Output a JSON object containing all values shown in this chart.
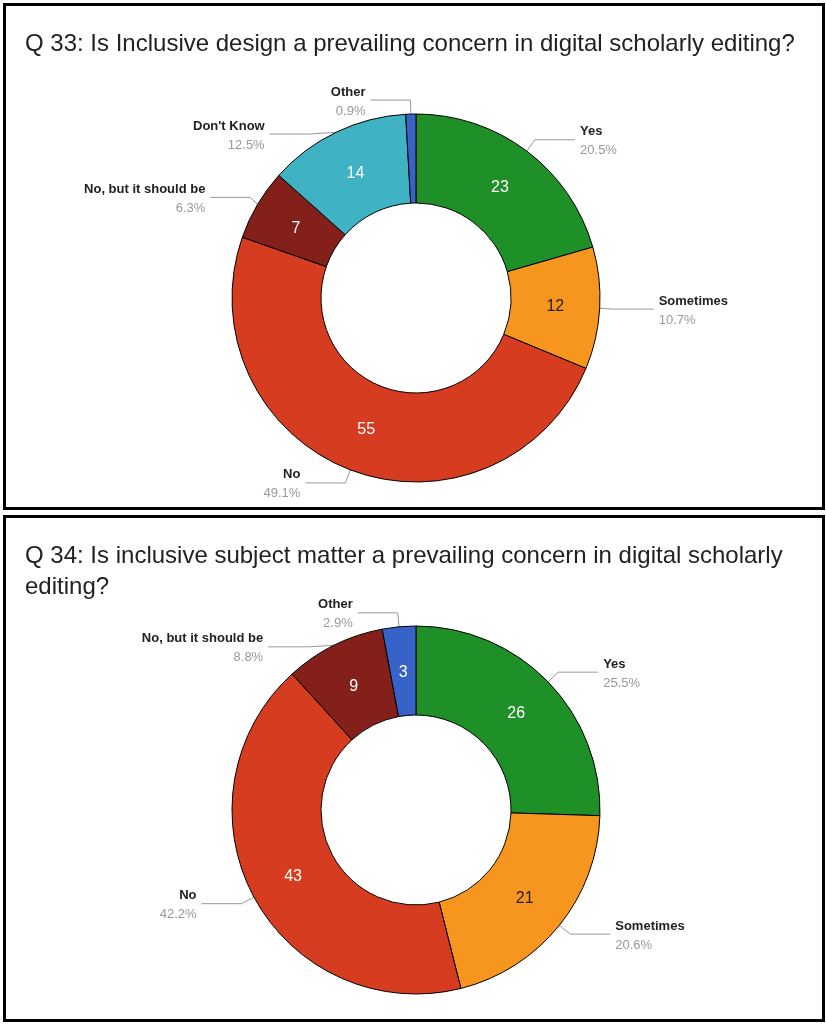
{
  "chart_data": [
    {
      "type": "donut",
      "title": "Q 33: Is Inclusive design a prevailing concern in digital scholarly editing?",
      "categories": [
        "Yes",
        "Sometimes",
        "No",
        "No, but it should be",
        "Don't Know",
        "Other"
      ],
      "values": [
        23,
        12,
        55,
        7,
        14,
        1
      ],
      "colors": [
        "#1f8f27",
        "#f7961e",
        "#d63c1f",
        "#84201a",
        "#3fb3c3",
        "#3763c9"
      ],
      "value_labels": [
        "23",
        "12",
        "55",
        "7",
        "14",
        null
      ],
      "annotations": [
        "20.5%",
        "10.7%",
        "49.1%",
        "6.3%",
        "12.5%",
        "0.9%"
      ],
      "legend": false
    },
    {
      "type": "donut",
      "title": "Q 34: Is inclusive subject matter a prevailing concern in digital scholarly editing?",
      "categories": [
        "Yes",
        "Sometimes",
        "No",
        "No, but it should be",
        "Other"
      ],
      "values": [
        26,
        21,
        43,
        9,
        3
      ],
      "colors": [
        "#1f8f27",
        "#f7961e",
        "#d63c1f",
        "#84201a",
        "#3763c9"
      ],
      "value_labels": [
        "26",
        "21",
        "43",
        "9",
        "3"
      ],
      "annotations": [
        "25.5%",
        "20.6%",
        "42.2%",
        "8.8%",
        "2.9%"
      ],
      "legend": false
    }
  ]
}
